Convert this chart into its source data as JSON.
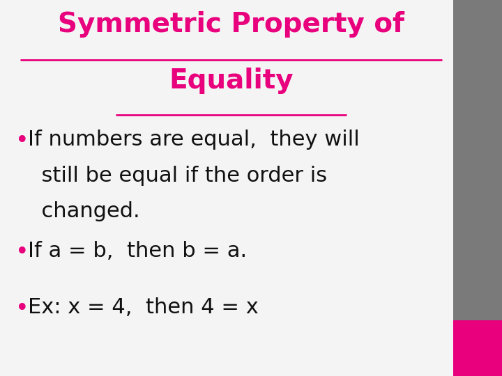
{
  "title_line1": "Symmetric Property of",
  "title_line2": "Equality",
  "title_color": "#E8007D",
  "title_fontsize": 28,
  "bullet_color": "#E8007D",
  "text_color": "#111111",
  "body_fontsize": 22,
  "bullet1_lines": [
    "If numbers are equal,  they will",
    "  still be equal if the order is",
    "  changed."
  ],
  "bullet2": "If a = b,  then b = a.",
  "bullet3": "Ex: x = 4,  then 4 = x",
  "slide_bg": "#f4f4f4",
  "right_bar_color": "#7a7a7a",
  "pink_box_color": "#E8007D",
  "figwidth": 7.2,
  "figheight": 5.4,
  "dpi": 100
}
